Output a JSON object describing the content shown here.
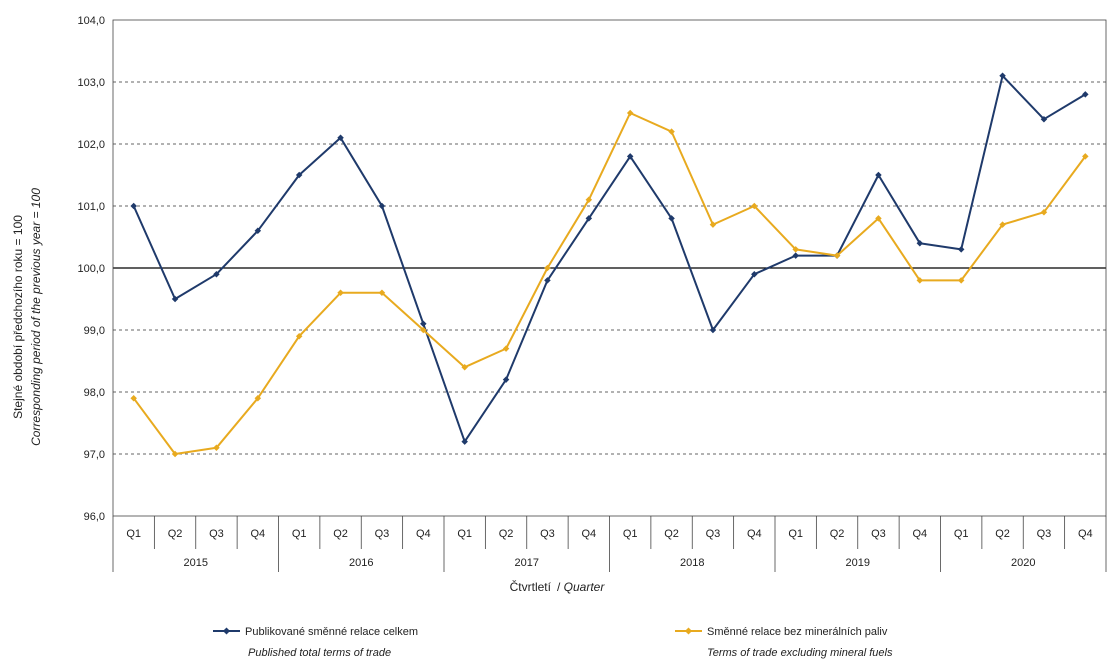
{
  "chart_data": {
    "type": "line",
    "title": "",
    "ylabel_cz": "Stejné období předchozího roku = 100",
    "ylabel_en": "Corresponding period of the previous year = 100",
    "xlabel_cz": "Čtvrtletí",
    "xlabel_en": "Quarter",
    "ylim": [
      96.0,
      104.0
    ],
    "yticks": [
      "96,0",
      "97,0",
      "98,0",
      "99,0",
      "100,0",
      "101,0",
      "102,0",
      "103,0",
      "104,0"
    ],
    "quarters": [
      "Q1",
      "Q2",
      "Q3",
      "Q4",
      "Q1",
      "Q2",
      "Q3",
      "Q4",
      "Q1",
      "Q2",
      "Q3",
      "Q4",
      "Q1",
      "Q2",
      "Q3",
      "Q4",
      "Q1",
      "Q2",
      "Q3",
      "Q4",
      "Q1",
      "Q2",
      "Q3",
      "Q4"
    ],
    "years": [
      "2015",
      "2016",
      "2017",
      "2018",
      "2019",
      "2020"
    ],
    "series": [
      {
        "name": "Publikované směnné relace celkem",
        "name_en": "Published total terms of trade",
        "color": "#1f3a6b",
        "values": [
          101.0,
          99.5,
          99.9,
          100.6,
          101.5,
          102.1,
          101.0,
          99.1,
          97.2,
          98.2,
          99.8,
          100.8,
          101.8,
          100.8,
          99.0,
          99.9,
          100.2,
          100.2,
          101.5,
          100.4,
          100.3,
          103.1,
          102.4,
          102.8
        ]
      },
      {
        "name": "Směnné relace bez minerálních paliv",
        "name_en": "Terms of trade excluding mineral fuels",
        "color": "#e8aa1f",
        "values": [
          97.9,
          97.0,
          97.1,
          97.9,
          98.9,
          99.6,
          99.6,
          99.0,
          98.4,
          98.7,
          100.0,
          101.1,
          102.5,
          102.2,
          100.7,
          101.0,
          100.3,
          100.2,
          100.8,
          99.8,
          99.8,
          100.7,
          100.9,
          101.8
        ]
      }
    ],
    "grid": true,
    "legend_position": "bottom"
  }
}
